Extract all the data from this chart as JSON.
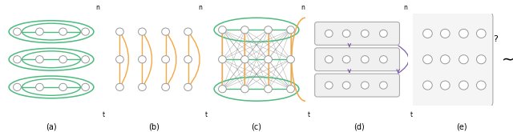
{
  "fig_width": 6.4,
  "fig_height": 1.65,
  "dpi": 100,
  "background": "#ffffff",
  "panels": [
    "(a)",
    "(b)",
    "(c)",
    "(d)",
    "(e)"
  ],
  "green_color": "#4dba7f",
  "orange_color": "#f4a742",
  "purple_color": "#7b5ea7",
  "gray_color": "#aaaaaa",
  "gray_line_color": "#888888",
  "node_edge_color": "#999999",
  "node_face_color": "#ffffff",
  "box_face_color": "#f0f0f0",
  "box_edge_color": "#aaaaaa"
}
